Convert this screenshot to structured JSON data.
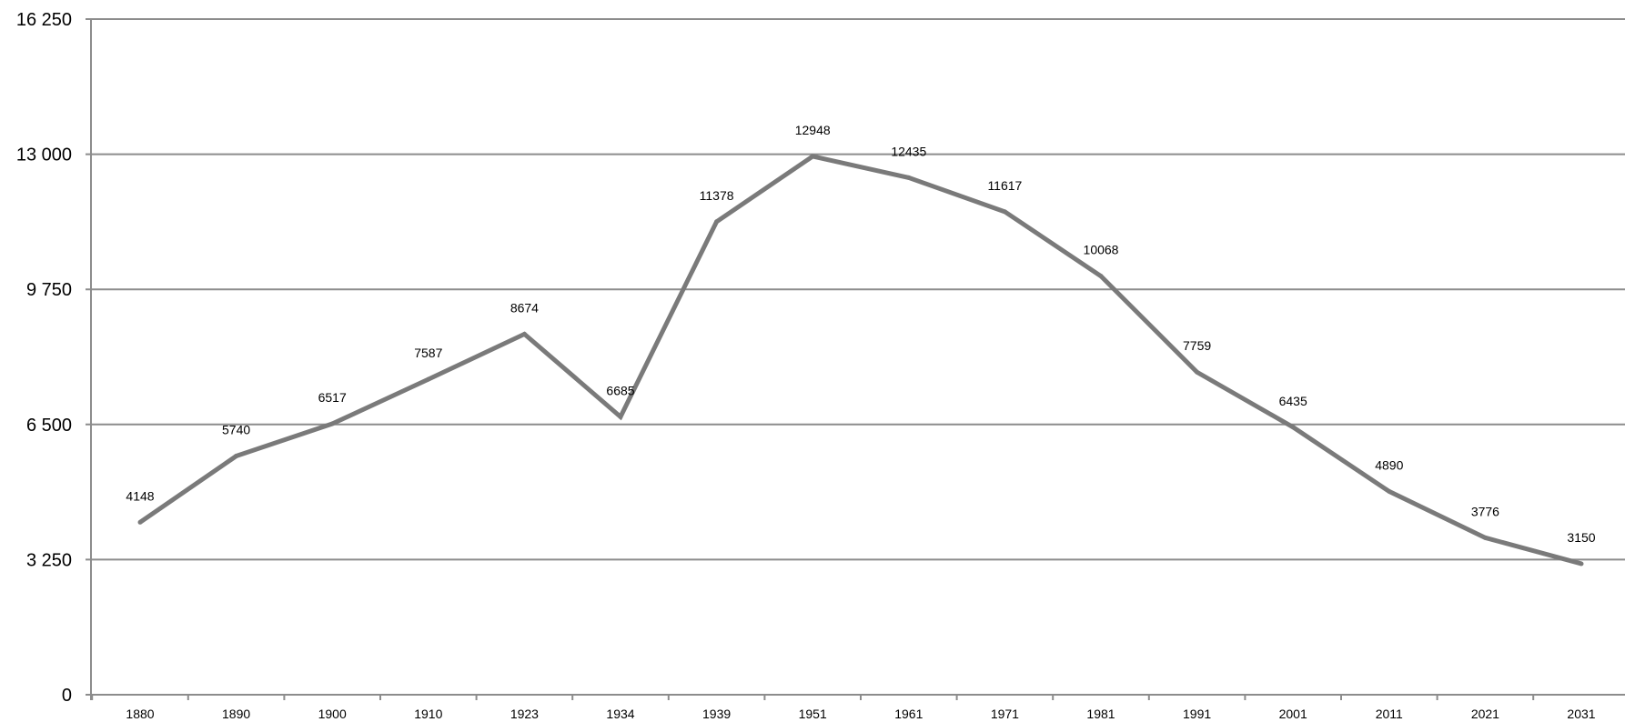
{
  "chart_data": {
    "type": "line",
    "title": "",
    "xlabel": "",
    "ylabel": "",
    "x": [
      "1880",
      "1890",
      "1900",
      "1910",
      "1923",
      "1934",
      "1939",
      "1951",
      "1961",
      "1971",
      "1981",
      "1991",
      "2001",
      "2011",
      "2021",
      "2031"
    ],
    "series": [
      {
        "values": [
          4148,
          5740,
          6517,
          7587,
          8674,
          6685,
          11378,
          12948,
          12435,
          11617,
          10068,
          7759,
          6435,
          4890,
          3776,
          3150
        ],
        "data_labels": [
          "4148",
          "5740",
          "6517",
          "7587",
          "8674",
          "6685",
          "11378",
          "12948",
          "12435",
          "11617",
          "10068",
          "7759",
          "6435",
          "4890",
          "3776",
          "3150"
        ]
      }
    ],
    "ylim": [
      0,
      16250
    ],
    "y_ticks": [
      0,
      3250,
      6500,
      9750,
      13000,
      16250
    ],
    "y_tick_labels": [
      "0",
      "3 250",
      "6 500",
      "9 750",
      "13 000",
      "16 250"
    ],
    "grid": true,
    "legend": "none",
    "colors": {
      "series": "#7a7a7a",
      "grid": "#8c8c8c",
      "axis": "#8c8c8c"
    }
  }
}
